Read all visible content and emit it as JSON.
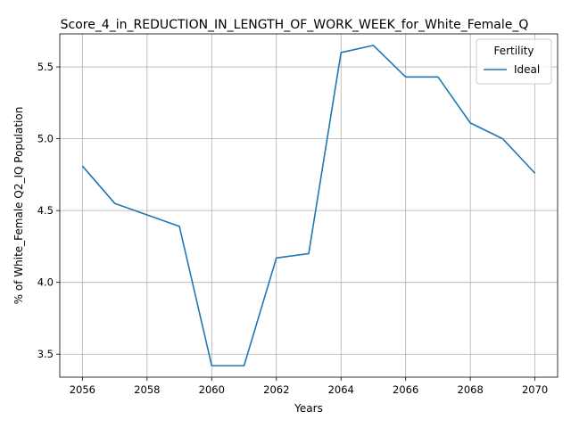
{
  "chart_data": {
    "type": "line",
    "title": "Score_4_in_REDUCTION_IN_LENGTH_OF_WORK_WEEK_for_White_Female_Q",
    "xlabel": "Years",
    "ylabel": "% of White_Female Q2_IQ Population",
    "x": [
      2056,
      2057,
      2058,
      2059,
      2060,
      2061,
      2062,
      2063,
      2064,
      2065,
      2066,
      2067,
      2068,
      2069,
      2070
    ],
    "series": [
      {
        "name": "Ideal",
        "color": "#1f77b4",
        "values": [
          4.81,
          4.55,
          4.47,
          4.39,
          3.42,
          3.42,
          4.17,
          4.2,
          5.6,
          5.65,
          5.43,
          5.43,
          5.11,
          5.0,
          4.76
        ]
      }
    ],
    "xlim": [
      2055.3,
      2070.7
    ],
    "ylim": [
      3.34,
      5.73
    ],
    "xticks": [
      "2056",
      "2058",
      "2060",
      "2062",
      "2064",
      "2066",
      "2068",
      "2070"
    ],
    "yticks": [
      "3.5",
      "4.0",
      "4.5",
      "5.0",
      "5.5"
    ],
    "grid": true,
    "legend": {
      "title": "Fertility",
      "placement": "top-right"
    }
  }
}
